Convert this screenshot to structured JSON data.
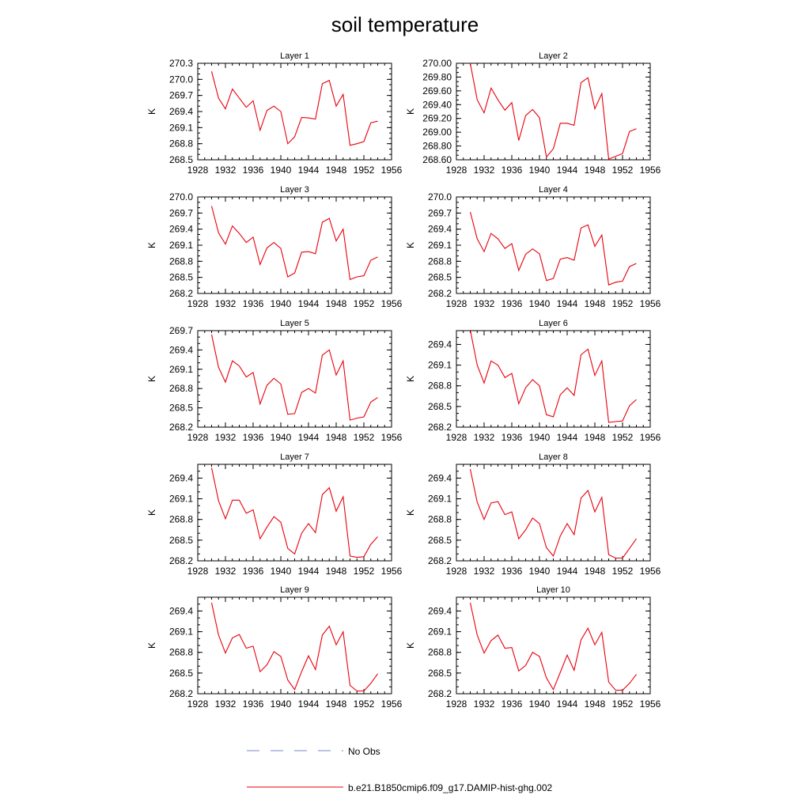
{
  "title": "soil temperature",
  "colors": {
    "model": "#e8000b",
    "obs": "#7a88c8",
    "frame": "#000000"
  },
  "legend": {
    "items": [
      {
        "label": "No Obs",
        "style": "dashed",
        "color": "#7a88c8"
      },
      {
        "label": "b.e21.B1850cmip6.f09_g17.DAMIP-hist-ghg.002",
        "style": "solid",
        "color": "#e8000b"
      }
    ]
  },
  "chart_data": [
    {
      "type": "line",
      "title": "Layer 1",
      "ylabel": "K",
      "xlim": [
        1928,
        1956
      ],
      "ylim": [
        268.5,
        270.3
      ],
      "xticks": [
        "1928",
        "1932",
        "1936",
        "1940",
        "1944",
        "1948",
        "1952",
        "1956"
      ],
      "yticks": [
        "268.5",
        "268.8",
        "269.1",
        "269.4",
        "269.7",
        "270.0",
        "270.3"
      ],
      "series": [
        {
          "x": [
            1930,
            1931,
            1932,
            1933,
            1934,
            1935,
            1936,
            1937,
            1938,
            1939,
            1940,
            1941,
            1942,
            1943,
            1944,
            1945,
            1946,
            1947,
            1948,
            1949,
            1950,
            1951,
            1952,
            1953,
            1954
          ],
          "values": [
            270.15,
            269.65,
            269.45,
            269.82,
            269.65,
            269.48,
            269.6,
            269.05,
            269.42,
            269.5,
            269.4,
            268.8,
            268.93,
            269.29,
            269.28,
            269.26,
            269.92,
            269.98,
            269.5,
            269.72,
            268.77,
            268.8,
            268.84,
            269.19,
            269.22
          ]
        }
      ]
    },
    {
      "type": "line",
      "title": "Layer 2",
      "ylabel": "K",
      "xlim": [
        1928,
        1956
      ],
      "ylim": [
        268.6,
        270.0
      ],
      "xticks": [
        "1928",
        "1932",
        "1936",
        "1940",
        "1944",
        "1948",
        "1952",
        "1956"
      ],
      "yticks": [
        "268.60",
        "268.80",
        "269.00",
        "269.20",
        "269.40",
        "269.60",
        "269.80",
        "270.00"
      ],
      "series": [
        {
          "x": [
            1930,
            1931,
            1932,
            1933,
            1934,
            1935,
            1936,
            1937,
            1938,
            1939,
            1940,
            1941,
            1942,
            1943,
            1944,
            1945,
            1946,
            1947,
            1948,
            1949,
            1950,
            1951,
            1952,
            1953,
            1954
          ],
          "values": [
            270.0,
            269.47,
            269.28,
            269.64,
            269.47,
            269.32,
            269.43,
            268.88,
            269.24,
            269.33,
            269.21,
            268.64,
            268.76,
            269.13,
            269.13,
            269.1,
            269.72,
            269.79,
            269.34,
            269.56,
            268.61,
            268.65,
            268.69,
            269.01,
            269.05
          ]
        }
      ]
    },
    {
      "type": "line",
      "title": "Layer 3",
      "ylabel": "K",
      "xlim": [
        1928,
        1956
      ],
      "ylim": [
        268.2,
        270.0
      ],
      "xticks": [
        "1928",
        "1932",
        "1936",
        "1940",
        "1944",
        "1948",
        "1952",
        "1956"
      ],
      "yticks": [
        "268.2",
        "268.5",
        "268.8",
        "269.1",
        "269.4",
        "269.7",
        "270.0"
      ],
      "series": [
        {
          "x": [
            1930,
            1931,
            1932,
            1933,
            1934,
            1935,
            1936,
            1937,
            1938,
            1939,
            1940,
            1941,
            1942,
            1943,
            1944,
            1945,
            1946,
            1947,
            1948,
            1949,
            1950,
            1951,
            1952,
            1953,
            1954
          ],
          "values": [
            269.83,
            269.33,
            269.12,
            269.46,
            269.32,
            269.15,
            269.25,
            268.74,
            269.05,
            269.15,
            269.04,
            268.51,
            268.58,
            268.97,
            268.98,
            268.94,
            269.53,
            269.6,
            269.18,
            269.4,
            268.46,
            268.51,
            268.53,
            268.82,
            268.88
          ]
        }
      ]
    },
    {
      "type": "line",
      "title": "Layer 4",
      "ylabel": "K",
      "xlim": [
        1928,
        1956
      ],
      "ylim": [
        268.2,
        270.0
      ],
      "xticks": [
        "1928",
        "1932",
        "1936",
        "1940",
        "1944",
        "1948",
        "1952",
        "1956"
      ],
      "yticks": [
        "268.2",
        "268.5",
        "268.8",
        "269.1",
        "269.4",
        "269.7",
        "270.0"
      ],
      "series": [
        {
          "x": [
            1930,
            1931,
            1932,
            1933,
            1934,
            1935,
            1936,
            1937,
            1938,
            1939,
            1940,
            1941,
            1942,
            1943,
            1944,
            1945,
            1946,
            1947,
            1948,
            1949,
            1950,
            1951,
            1952,
            1953,
            1954
          ],
          "values": [
            269.72,
            269.22,
            268.98,
            269.32,
            269.22,
            269.04,
            269.13,
            268.63,
            268.93,
            269.03,
            268.94,
            268.44,
            268.48,
            268.84,
            268.87,
            268.82,
            269.42,
            269.48,
            269.08,
            269.29,
            268.36,
            268.41,
            268.43,
            268.7,
            268.76
          ]
        }
      ]
    },
    {
      "type": "line",
      "title": "Layer 5",
      "ylabel": "K",
      "xlim": [
        1928,
        1956
      ],
      "ylim": [
        268.2,
        269.7
      ],
      "xticks": [
        "1928",
        "1932",
        "1936",
        "1940",
        "1944",
        "1948",
        "1952",
        "1956"
      ],
      "yticks": [
        "268.2",
        "268.5",
        "268.8",
        "269.1",
        "269.4",
        "269.7"
      ],
      "series": [
        {
          "x": [
            1930,
            1931,
            1932,
            1933,
            1934,
            1935,
            1936,
            1937,
            1938,
            1939,
            1940,
            1941,
            1942,
            1943,
            1944,
            1945,
            1946,
            1947,
            1948,
            1949,
            1950,
            1951,
            1952,
            1953,
            1954
          ],
          "values": [
            269.64,
            269.13,
            268.9,
            269.23,
            269.15,
            268.98,
            269.05,
            268.56,
            268.85,
            268.96,
            268.87,
            268.4,
            268.41,
            268.74,
            268.8,
            268.73,
            269.32,
            269.4,
            269.01,
            269.23,
            268.31,
            268.34,
            268.36,
            268.59,
            268.66
          ]
        }
      ]
    },
    {
      "type": "line",
      "title": "Layer 6",
      "ylabel": "K",
      "xlim": [
        1928,
        1956
      ],
      "ylim": [
        268.2,
        269.6
      ],
      "xticks": [
        "1928",
        "1932",
        "1936",
        "1940",
        "1944",
        "1948",
        "1952",
        "1956"
      ],
      "yticks": [
        "268.2",
        "268.5",
        "268.8",
        "269.1",
        "269.4"
      ],
      "series": [
        {
          "x": [
            1930,
            1931,
            1932,
            1933,
            1934,
            1935,
            1936,
            1937,
            1938,
            1939,
            1940,
            1941,
            1942,
            1943,
            1944,
            1945,
            1946,
            1947,
            1948,
            1949,
            1950,
            1951,
            1952,
            1953,
            1954
          ],
          "values": [
            269.61,
            269.1,
            268.84,
            269.16,
            269.1,
            268.92,
            268.98,
            268.54,
            268.77,
            268.89,
            268.8,
            268.38,
            268.35,
            268.67,
            268.77,
            268.66,
            269.25,
            269.33,
            268.95,
            269.16,
            268.27,
            268.28,
            268.29,
            268.51,
            268.6
          ]
        }
      ]
    },
    {
      "type": "line",
      "title": "Layer 7",
      "ylabel": "K",
      "xlim": [
        1928,
        1956
      ],
      "ylim": [
        268.2,
        269.6
      ],
      "xticks": [
        "1928",
        "1932",
        "1936",
        "1940",
        "1944",
        "1948",
        "1952",
        "1956"
      ],
      "yticks": [
        "268.2",
        "268.5",
        "268.8",
        "269.1",
        "269.4"
      ],
      "series": [
        {
          "x": [
            1930,
            1931,
            1932,
            1933,
            1934,
            1935,
            1936,
            1937,
            1938,
            1939,
            1940,
            1941,
            1942,
            1943,
            1944,
            1945,
            1946,
            1947,
            1948,
            1949,
            1950,
            1951,
            1952,
            1953,
            1954
          ],
          "values": [
            269.55,
            269.07,
            268.81,
            269.08,
            269.08,
            268.89,
            268.94,
            268.52,
            268.69,
            268.84,
            268.76,
            268.38,
            268.3,
            268.6,
            268.74,
            268.61,
            269.16,
            269.26,
            268.92,
            269.13,
            268.27,
            268.25,
            268.26,
            268.44,
            268.55
          ]
        }
      ]
    },
    {
      "type": "line",
      "title": "Layer 8",
      "ylabel": "K",
      "xlim": [
        1928,
        1956
      ],
      "ylim": [
        268.2,
        269.6
      ],
      "xticks": [
        "1928",
        "1932",
        "1936",
        "1940",
        "1944",
        "1948",
        "1952",
        "1956"
      ],
      "yticks": [
        "268.2",
        "268.5",
        "268.8",
        "269.1",
        "269.4"
      ],
      "series": [
        {
          "x": [
            1930,
            1931,
            1932,
            1933,
            1934,
            1935,
            1936,
            1937,
            1938,
            1939,
            1940,
            1941,
            1942,
            1943,
            1944,
            1945,
            1946,
            1947,
            1948,
            1949,
            1950,
            1951,
            1952,
            1953,
            1954
          ],
          "values": [
            269.53,
            269.05,
            268.8,
            269.04,
            269.06,
            268.87,
            268.91,
            268.52,
            268.65,
            268.82,
            268.74,
            268.39,
            268.27,
            268.56,
            268.74,
            268.58,
            269.11,
            269.22,
            268.91,
            269.12,
            268.29,
            268.24,
            268.24,
            268.38,
            268.52
          ]
        }
      ]
    },
    {
      "type": "line",
      "title": "Layer 9",
      "ylabel": "K",
      "xlim": [
        1928,
        1956
      ],
      "ylim": [
        268.2,
        269.6
      ],
      "xticks": [
        "1928",
        "1932",
        "1936",
        "1940",
        "1944",
        "1948",
        "1952",
        "1956"
      ],
      "yticks": [
        "268.2",
        "268.5",
        "268.8",
        "269.1",
        "269.4"
      ],
      "series": [
        {
          "x": [
            1930,
            1931,
            1932,
            1933,
            1934,
            1935,
            1936,
            1937,
            1938,
            1939,
            1940,
            1941,
            1942,
            1943,
            1944,
            1945,
            1946,
            1947,
            1948,
            1949,
            1950,
            1951,
            1952,
            1953,
            1954
          ],
          "values": [
            269.52,
            269.05,
            268.79,
            269.01,
            269.06,
            268.86,
            268.89,
            268.52,
            268.62,
            268.81,
            268.74,
            268.4,
            268.26,
            268.52,
            268.75,
            268.55,
            269.05,
            269.18,
            268.91,
            269.1,
            268.32,
            268.24,
            268.24,
            268.35,
            268.49
          ]
        }
      ]
    },
    {
      "type": "line",
      "title": "Layer 10",
      "ylabel": "K",
      "xlim": [
        1928,
        1956
      ],
      "ylim": [
        268.2,
        269.6
      ],
      "xticks": [
        "1928",
        "1932",
        "1936",
        "1940",
        "1944",
        "1948",
        "1952",
        "1956"
      ],
      "yticks": [
        "268.2",
        "268.5",
        "268.8",
        "269.1",
        "269.4"
      ],
      "series": [
        {
          "x": [
            1930,
            1931,
            1932,
            1933,
            1934,
            1935,
            1936,
            1937,
            1938,
            1939,
            1940,
            1941,
            1942,
            1943,
            1944,
            1945,
            1946,
            1947,
            1948,
            1949,
            1950,
            1951,
            1952,
            1953,
            1954
          ],
          "values": [
            269.52,
            269.05,
            268.79,
            268.97,
            269.05,
            268.86,
            268.87,
            268.53,
            268.61,
            268.8,
            268.74,
            268.43,
            268.26,
            268.51,
            268.76,
            268.54,
            268.98,
            269.15,
            268.91,
            269.09,
            268.37,
            268.25,
            268.25,
            268.35,
            268.48
          ]
        }
      ]
    }
  ]
}
